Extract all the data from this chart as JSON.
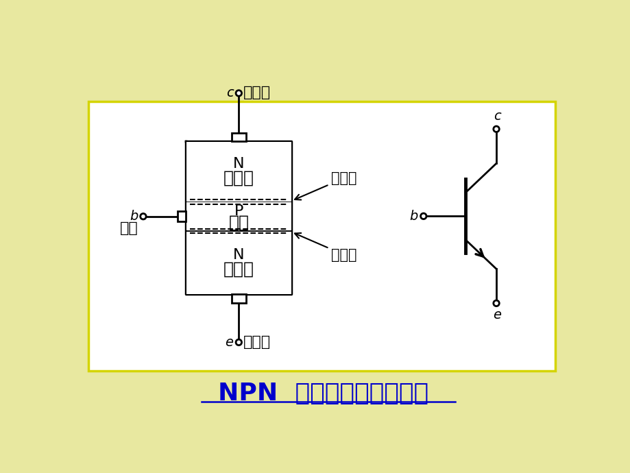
{
  "bg_outer": "#e8e8a0",
  "bg_inner": "#ffffff",
  "border_color": "#d4d400",
  "line_color": "#000000",
  "title_color": "#0000cc",
  "title_text": "NPN  型三极管结构及符号",
  "label_jiedianji": "集电极",
  "label_fasheji": "发射极",
  "label_baji": "基极",
  "label_jiedianqu": "集电区",
  "label_fashequ": "发射区",
  "label_jiqu": "基区",
  "label_jiedanjie": "集电结",
  "label_fashejie": "发射结",
  "title_fontsize": 26,
  "label_fontsize": 16,
  "small_fontsize": 14,
  "anno_fontsize": 15
}
